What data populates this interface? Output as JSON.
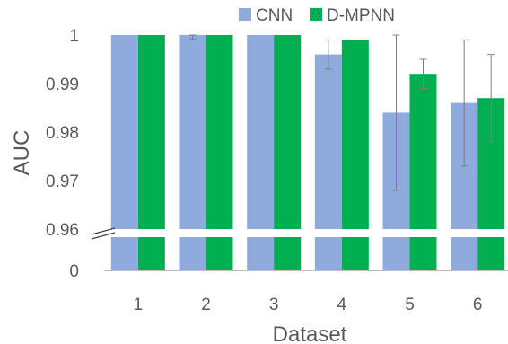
{
  "chart_data": {
    "type": "bar",
    "xlabel": "Dataset",
    "ylabel": "AUC",
    "categories": [
      "1",
      "2",
      "3",
      "4",
      "5",
      "6"
    ],
    "y_ticks_upper": [
      "0.96",
      "0.97",
      "0.98",
      "0.99",
      "1"
    ],
    "y_tick_lower": "0",
    "ylim_upper": [
      0.96,
      1.0
    ],
    "broken_axis": true,
    "legend_position": "top",
    "series": [
      {
        "name": "CNN",
        "color": "#8faadc",
        "values": [
          1.0,
          1.0,
          1.0,
          0.996,
          0.984,
          0.986
        ],
        "error": [
          0.0,
          0.0008,
          0.0,
          0.003,
          0.016,
          0.013
        ]
      },
      {
        "name": "D-MPNN",
        "color": "#00b050",
        "values": [
          1.0,
          1.0,
          1.0,
          0.999,
          0.992,
          0.987
        ],
        "error": [
          0.0,
          0.0,
          0.0,
          0.0,
          0.003,
          0.009
        ]
      }
    ],
    "grid": false
  }
}
